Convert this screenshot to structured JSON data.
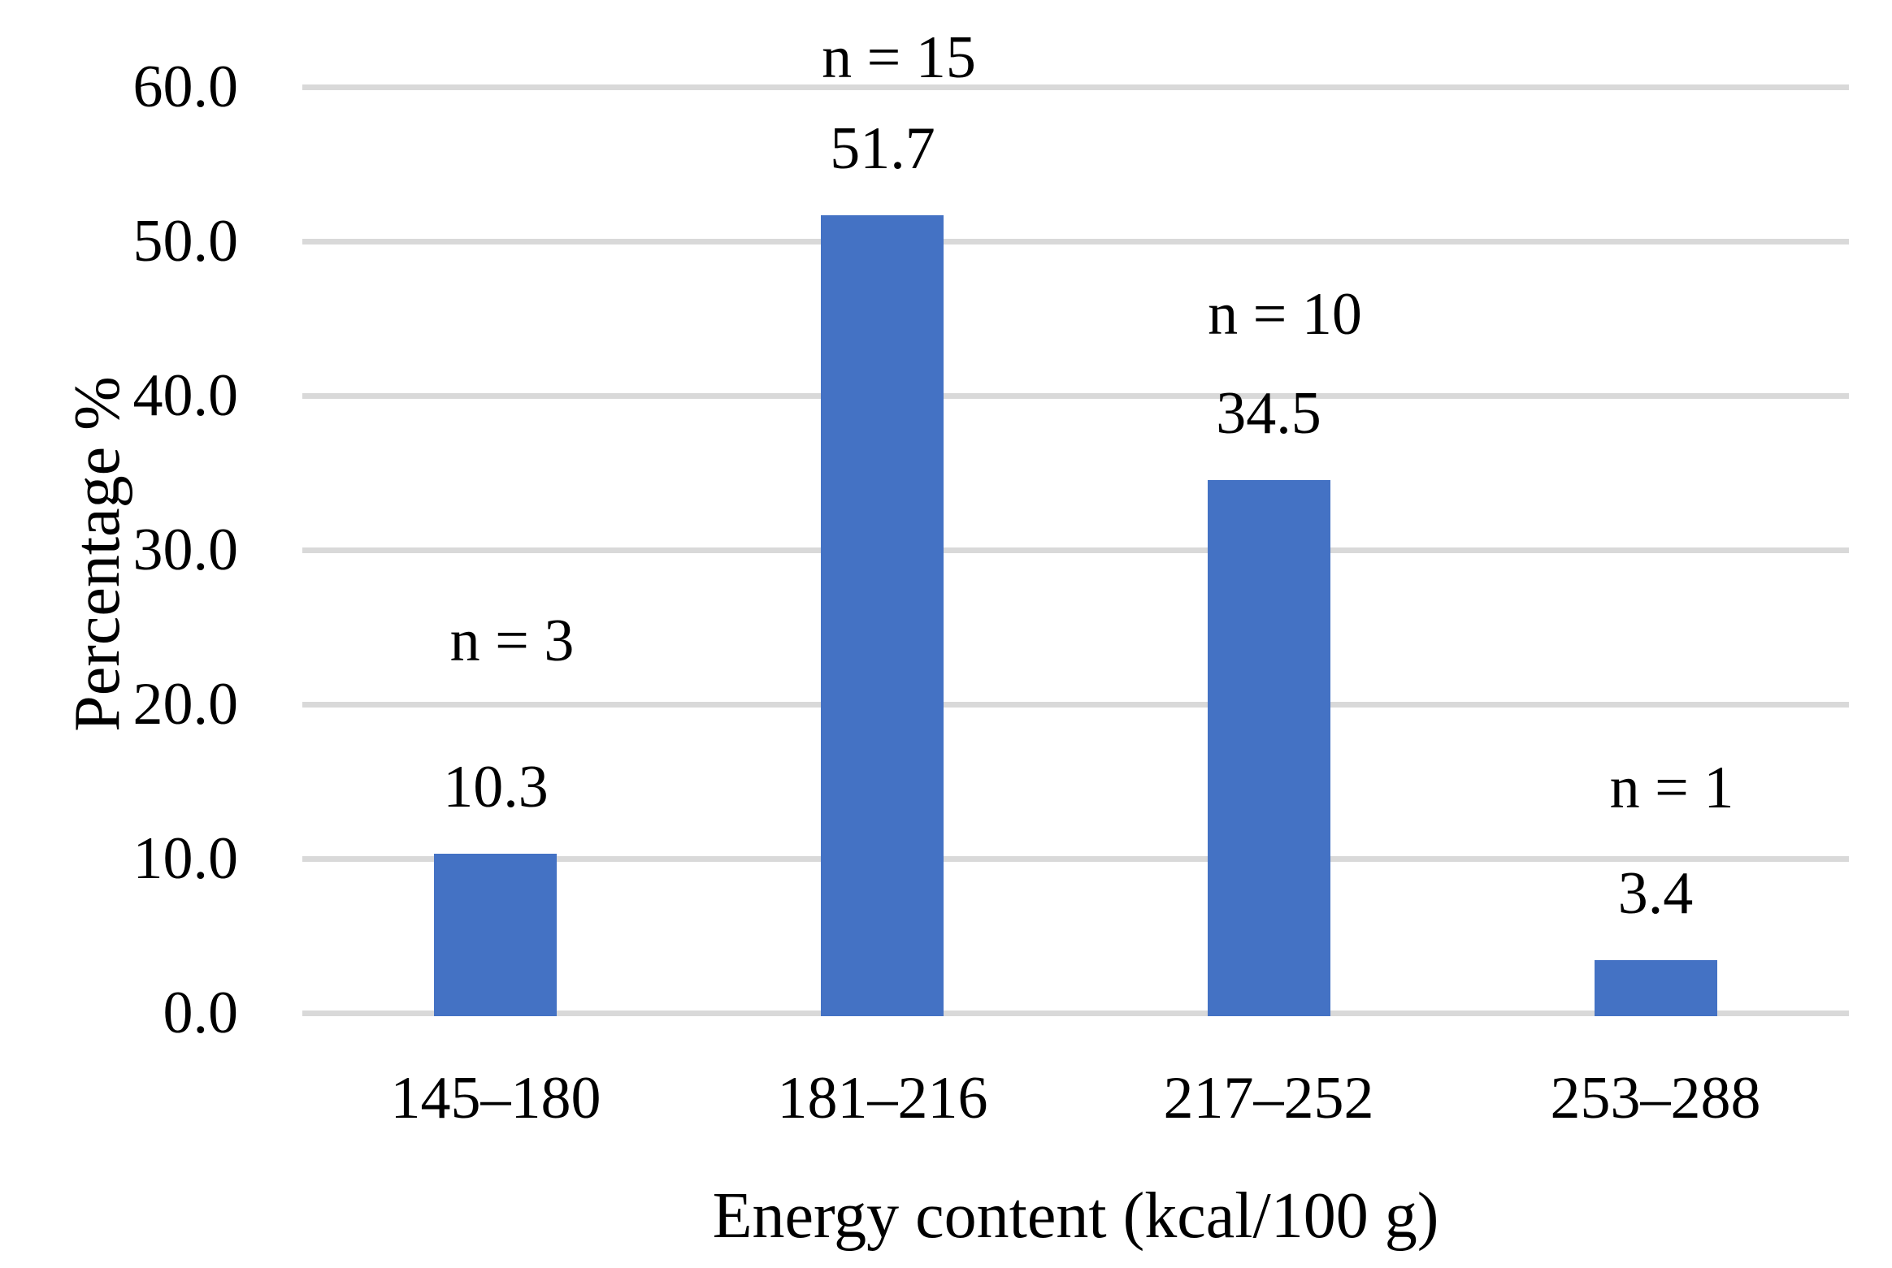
{
  "figure": {
    "background_color": "#ffffff",
    "text_color": "#000000"
  },
  "chart_data": {
    "type": "bar",
    "title": "",
    "categories": [
      "145–180",
      "181–216",
      "217–252",
      "253–288"
    ],
    "values": [
      10.3,
      51.7,
      34.5,
      3.4
    ],
    "bar_value_labels": [
      "10.3",
      "51.7",
      "34.5",
      "3.4"
    ],
    "n_labels": [
      "n = 3",
      "n = 15",
      "n = 10",
      "n = 1"
    ],
    "counts": [
      3,
      15,
      10,
      1
    ],
    "xlabel": "Energy content (kcal/100 g)",
    "ylabel": "Percentage %",
    "ylim": [
      0,
      60
    ],
    "yticks": [
      {
        "value": 0,
        "label": "0.0"
      },
      {
        "value": 10,
        "label": "10.0"
      },
      {
        "value": 20,
        "label": "20.0"
      },
      {
        "value": 30,
        "label": "30.0"
      },
      {
        "value": 40,
        "label": "40.0"
      },
      {
        "value": 50,
        "label": "50.0"
      },
      {
        "value": 60,
        "label": "60.0"
      }
    ],
    "grid": "horizontal",
    "legend": "none",
    "bar_color": "#4472C4",
    "gridline_color": "#D9D9D9"
  }
}
